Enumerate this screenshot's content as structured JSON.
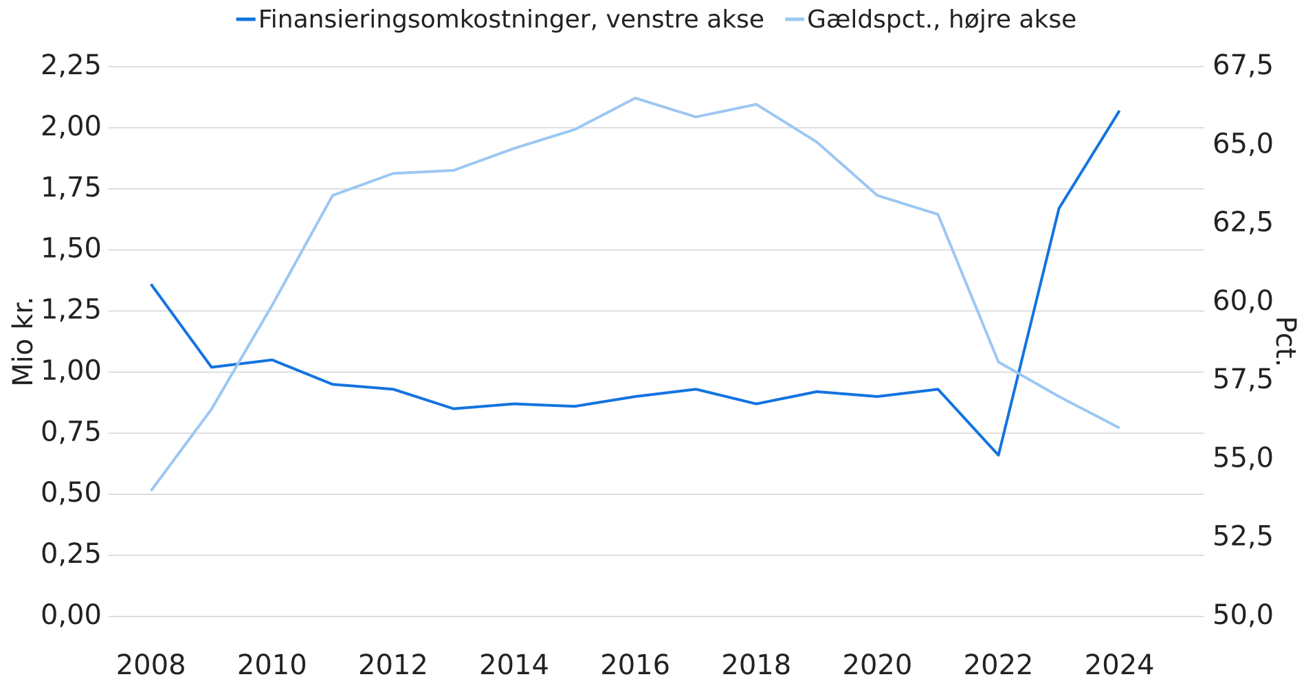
{
  "chart_data": {
    "type": "line",
    "x": [
      2008,
      2009,
      2010,
      2011,
      2012,
      2013,
      2014,
      2015,
      2016,
      2017,
      2018,
      2019,
      2020,
      2021,
      2022,
      2023,
      2024
    ],
    "xlim": [
      2007.3,
      2025.4
    ],
    "xticks": [
      2008,
      2010,
      2012,
      2014,
      2016,
      2018,
      2020,
      2022,
      2024
    ],
    "ylabel": "Mio kr.",
    "y2label": "Pct.",
    "ylim": [
      0,
      2.25
    ],
    "yticks": [
      {
        "value": 0,
        "label": "0,00"
      },
      {
        "value": 0.25,
        "label": "0,25"
      },
      {
        "value": 0.5,
        "label": "0,50"
      },
      {
        "value": 0.75,
        "label": "0,75"
      },
      {
        "value": 1,
        "label": "1,00"
      },
      {
        "value": 1.25,
        "label": "1,25"
      },
      {
        "value": 1.5,
        "label": "1,50"
      },
      {
        "value": 1.75,
        "label": "1,75"
      },
      {
        "value": 2,
        "label": "2,00"
      },
      {
        "value": 2.25,
        "label": "2,25"
      }
    ],
    "y2lim": [
      50,
      67.5
    ],
    "y2ticks": [
      {
        "value": 50,
        "label": "50,0"
      },
      {
        "value": 52.5,
        "label": "52,5"
      },
      {
        "value": 55,
        "label": "55,0"
      },
      {
        "value": 57.5,
        "label": "57,5"
      },
      {
        "value": 60,
        "label": "60,0"
      },
      {
        "value": 62.5,
        "label": "62,5"
      },
      {
        "value": 65,
        "label": "65,0"
      },
      {
        "value": 67.5,
        "label": "67,5"
      }
    ],
    "grid": true,
    "legend": "top",
    "series": [
      {
        "name": "Finansieringsomkostninger, venstre akse",
        "color": "#1273e0",
        "axis": "y",
        "values": [
          1.36,
          1.02,
          1.05,
          0.95,
          0.93,
          0.85,
          0.87,
          0.86,
          0.9,
          0.93,
          0.87,
          0.92,
          0.9,
          0.93,
          0.66,
          1.67,
          2.07
        ]
      },
      {
        "name": "Gældspct., højre akse",
        "color": "#9cc7f2",
        "axis": "y2",
        "values": [
          54.0,
          56.6,
          59.9,
          63.4,
          64.1,
          64.2,
          64.9,
          65.5,
          66.5,
          65.9,
          66.3,
          65.1,
          63.4,
          62.8,
          58.1,
          57.0,
          56.0
        ]
      }
    ]
  }
}
